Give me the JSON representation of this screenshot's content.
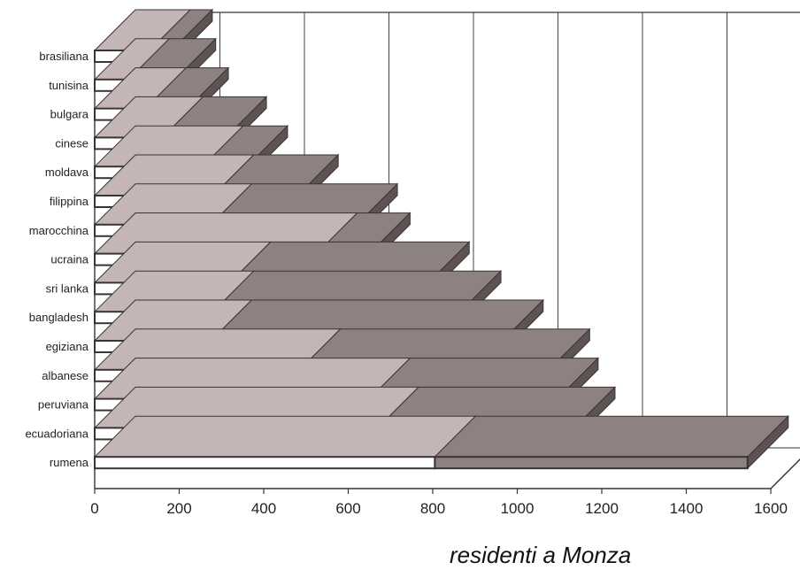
{
  "chart_data": {
    "type": "bar",
    "orientation": "horizontal",
    "stacked": true,
    "three_d": true,
    "categories": [
      "brasiliana",
      "tunisina",
      "bulgara",
      "cinese",
      "moldava",
      "filippina",
      "marocchina",
      "ucraina",
      "sri lanka",
      "bangladesh",
      "egiziana",
      "albanese",
      "peruviana",
      "ecuadoriana",
      "rumena"
    ],
    "series": [
      {
        "values": [
          130,
          80,
          120,
          160,
          255,
          280,
          275,
          525,
          320,
          280,
          275,
          485,
          650,
          670,
          805
        ],
        "color": "#ffffff",
        "top_color": "#c4b6b6"
      },
      {
        "values": [
          52,
          110,
          100,
          150,
          105,
          200,
          345,
          125,
          470,
          585,
          690,
          590,
          445,
          465,
          740
        ],
        "color": "#8e8181",
        "top_color": "#8e8181"
      }
    ],
    "xlim": [
      0,
      1600
    ],
    "xticks": [
      0,
      200,
      400,
      600,
      800,
      1000,
      1200,
      1400,
      1600
    ],
    "grid": true,
    "xlabel": "residenti a Monza",
    "colors": {
      "front_edge": "#3a3333",
      "side": "#5e5353",
      "gridline": "#444444"
    }
  }
}
